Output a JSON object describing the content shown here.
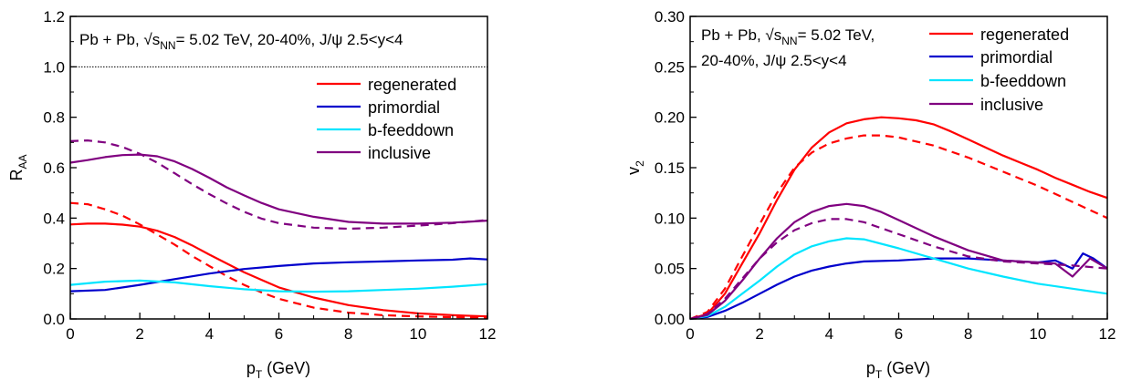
{
  "chart_data": [
    {
      "type": "line",
      "xlabel": "p",
      "xlabel_sub": "T",
      "xlabel_unit": " (GeV)",
      "ylabel": "R",
      "ylabel_sub": "AA",
      "xlim": [
        0,
        12
      ],
      "ylim": [
        0,
        1.2
      ],
      "xticks": [
        "0",
        "2",
        "4",
        "6",
        "8",
        "10",
        "12"
      ],
      "yticks": [
        "0.0",
        "0.2",
        "0.4",
        "0.6",
        "0.8",
        "1.0",
        "1.2"
      ],
      "annotation": {
        "text_a": "Pb + Pb, √s",
        "sub": "NN",
        "text_b": "= 5.02 TeV, 20-40%, J/ψ 2.5<y<4"
      },
      "reference_line": {
        "y": 1.0
      },
      "legend_position": "right",
      "series": [
        {
          "name": "regenerated",
          "color": "#ff0000",
          "style": "solid",
          "x": [
            0,
            0.5,
            1,
            1.5,
            2,
            2.5,
            3,
            3.5,
            4,
            4.5,
            5,
            5.5,
            6,
            7,
            8,
            9,
            10,
            11,
            12
          ],
          "y": [
            0.375,
            0.378,
            0.378,
            0.374,
            0.366,
            0.35,
            0.325,
            0.292,
            0.255,
            0.22,
            0.185,
            0.155,
            0.125,
            0.085,
            0.055,
            0.035,
            0.022,
            0.015,
            0.01
          ]
        },
        {
          "name": "",
          "color": "#ff0000",
          "style": "dashed",
          "x": [
            0,
            0.5,
            1,
            1.5,
            2,
            2.5,
            3,
            3.5,
            4,
            4.5,
            5,
            5.5,
            6,
            7,
            8,
            9,
            10,
            11,
            12
          ],
          "y": [
            0.46,
            0.455,
            0.435,
            0.41,
            0.375,
            0.335,
            0.295,
            0.25,
            0.21,
            0.17,
            0.135,
            0.105,
            0.08,
            0.045,
            0.025,
            0.015,
            0.01,
            0.007,
            0.005
          ]
        },
        {
          "name": "primordial",
          "color": "#0000cc",
          "style": "solid",
          "x": [
            0,
            1,
            2,
            3,
            4,
            5,
            6,
            7,
            8,
            9,
            10,
            11,
            11.5,
            12
          ],
          "y": [
            0.11,
            0.115,
            0.135,
            0.158,
            0.18,
            0.198,
            0.21,
            0.22,
            0.225,
            0.228,
            0.232,
            0.235,
            0.24,
            0.236
          ]
        },
        {
          "name": "b-feeddown",
          "color": "#00e5ff",
          "style": "solid",
          "x": [
            0,
            1,
            2,
            3,
            4,
            5,
            6,
            7,
            8,
            9,
            10,
            11,
            12
          ],
          "y": [
            0.135,
            0.148,
            0.152,
            0.145,
            0.13,
            0.118,
            0.11,
            0.108,
            0.11,
            0.115,
            0.12,
            0.128,
            0.138
          ]
        },
        {
          "name": "inclusive",
          "color": "#800080",
          "style": "solid",
          "x": [
            0,
            0.5,
            1,
            1.5,
            2,
            2.5,
            3,
            3.5,
            4,
            4.5,
            5,
            5.5,
            6,
            7,
            8,
            9,
            10,
            11,
            12
          ],
          "y": [
            0.62,
            0.63,
            0.642,
            0.65,
            0.652,
            0.645,
            0.625,
            0.595,
            0.56,
            0.522,
            0.49,
            0.46,
            0.435,
            0.405,
            0.385,
            0.378,
            0.378,
            0.382,
            0.39
          ]
        },
        {
          "name": "",
          "color": "#800080",
          "style": "dashed",
          "x": [
            0,
            0.5,
            1,
            1.5,
            2,
            2.5,
            3,
            3.5,
            4,
            4.5,
            5,
            5.5,
            6,
            7,
            8,
            9,
            10,
            11,
            12
          ],
          "y": [
            0.705,
            0.708,
            0.7,
            0.682,
            0.655,
            0.62,
            0.578,
            0.535,
            0.495,
            0.458,
            0.425,
            0.398,
            0.38,
            0.362,
            0.358,
            0.362,
            0.37,
            0.38,
            0.392
          ]
        }
      ]
    },
    {
      "type": "line",
      "xlabel": "p",
      "xlabel_sub": "T",
      "xlabel_unit": " (GeV)",
      "ylabel": "v",
      "ylabel_sub": "2",
      "xlim": [
        0,
        12
      ],
      "ylim": [
        0,
        0.3
      ],
      "xticks": [
        "0",
        "2",
        "4",
        "6",
        "8",
        "10",
        "12"
      ],
      "yticks": [
        "0.00",
        "0.05",
        "0.10",
        "0.15",
        "0.20",
        "0.25",
        "0.30"
      ],
      "annotation": {
        "line1_a": "Pb + Pb, √s",
        "sub": "NN",
        "line1_b": "= 5.02 TeV,",
        "line2": "20-40%, J/ψ 2.5<y<4"
      },
      "legend_position": "top-right",
      "series": [
        {
          "name": "regenerated",
          "color": "#ff0000",
          "style": "solid",
          "x": [
            0,
            0.5,
            1,
            1.5,
            2,
            2.5,
            3,
            3.5,
            4,
            4.5,
            5,
            5.5,
            6,
            6.5,
            7,
            7.5,
            8,
            8.5,
            9,
            9.5,
            10,
            10.5,
            11,
            11.5,
            12
          ],
          "y": [
            0,
            0.005,
            0.025,
            0.055,
            0.085,
            0.118,
            0.148,
            0.17,
            0.185,
            0.194,
            0.198,
            0.2,
            0.199,
            0.197,
            0.193,
            0.186,
            0.178,
            0.17,
            0.162,
            0.155,
            0.148,
            0.14,
            0.133,
            0.126,
            0.12
          ]
        },
        {
          "name": "",
          "color": "#ff0000",
          "style": "dashed",
          "x": [
            0,
            0.5,
            1,
            1.5,
            2,
            2.5,
            3,
            3.5,
            4,
            4.5,
            5,
            5.5,
            6,
            7,
            8,
            9,
            10,
            11,
            12
          ],
          "y": [
            0,
            0.007,
            0.03,
            0.062,
            0.094,
            0.125,
            0.15,
            0.165,
            0.174,
            0.179,
            0.182,
            0.182,
            0.18,
            0.172,
            0.16,
            0.146,
            0.132,
            0.116,
            0.1
          ]
        },
        {
          "name": "primordial",
          "color": "#0000cc",
          "style": "solid",
          "x": [
            0,
            0.5,
            1,
            1.5,
            2,
            2.5,
            3,
            3.5,
            4,
            4.5,
            5,
            6,
            7,
            8,
            9,
            10,
            10.5,
            11,
            11.3,
            11.6,
            12
          ],
          "y": [
            0,
            0.002,
            0.008,
            0.016,
            0.025,
            0.034,
            0.042,
            0.048,
            0.052,
            0.055,
            0.057,
            0.058,
            0.06,
            0.06,
            0.058,
            0.056,
            0.058,
            0.05,
            0.065,
            0.06,
            0.05
          ]
        },
        {
          "name": "b-feeddown",
          "color": "#00e5ff",
          "style": "solid",
          "x": [
            0,
            0.5,
            1,
            1.5,
            2,
            2.5,
            3,
            3.5,
            4,
            4.5,
            5,
            6,
            7,
            8,
            9,
            10,
            11,
            12
          ],
          "y": [
            0,
            0.003,
            0.012,
            0.025,
            0.038,
            0.052,
            0.064,
            0.072,
            0.077,
            0.08,
            0.079,
            0.07,
            0.06,
            0.05,
            0.042,
            0.035,
            0.03,
            0.025
          ]
        },
        {
          "name": "inclusive",
          "color": "#800080",
          "style": "solid",
          "x": [
            0,
            0.5,
            1,
            1.5,
            2,
            2.5,
            3,
            3.5,
            4,
            4.5,
            5,
            5.5,
            6,
            7,
            8,
            9,
            10,
            10.5,
            11,
            11.5,
            12
          ],
          "y": [
            0,
            0.004,
            0.018,
            0.038,
            0.06,
            0.08,
            0.096,
            0.106,
            0.112,
            0.114,
            0.112,
            0.106,
            0.098,
            0.082,
            0.068,
            0.058,
            0.056,
            0.055,
            0.042,
            0.06,
            0.05
          ]
        },
        {
          "name": "",
          "color": "#800080",
          "style": "dashed",
          "x": [
            0,
            0.5,
            1,
            1.5,
            2,
            2.5,
            3,
            3.5,
            4,
            4.5,
            5,
            5.5,
            6,
            7,
            8,
            9,
            10,
            11,
            12
          ],
          "y": [
            0,
            0.005,
            0.02,
            0.04,
            0.06,
            0.076,
            0.088,
            0.095,
            0.099,
            0.099,
            0.096,
            0.09,
            0.084,
            0.072,
            0.062,
            0.057,
            0.055,
            0.053,
            0.05
          ]
        }
      ]
    }
  ]
}
